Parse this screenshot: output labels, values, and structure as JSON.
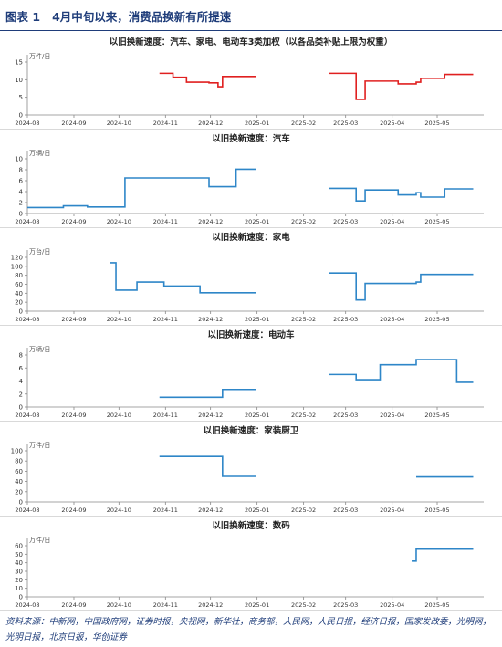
{
  "figure": {
    "title": "图表 1   4月中旬以来，消费品换新有所提速"
  },
  "source": "资料来源：中新网，中国政府网，证券时报，央视网，新华社，商务部，人民网，人民日报，经济日报，国家发改委，光明网，光明日报，北京日报，华创证券",
  "x_ticks": [
    "2024-08",
    "2024-09",
    "2024-10",
    "2024-11",
    "2024-12",
    "2025-01",
    "2025-02",
    "2025-03",
    "2025-04",
    "2025-05"
  ],
  "colors": {
    "red": "#e02020",
    "blue": "#2e86c8",
    "axis": "#888888",
    "title": "#1f3d7a"
  },
  "chart_data": [
    {
      "type": "line",
      "title": "以旧换新速度：汽车、家电、电动车3类加权（以各品类补贴上限为权重）",
      "unit": "万件/日",
      "ylim": [
        0,
        15
      ],
      "yticks": [
        0,
        5,
        10,
        15
      ],
      "color": "red",
      "segments": [
        [
          [
            "2024-10-28",
            11.8
          ],
          [
            "2024-11-06",
            11.8
          ],
          [
            "2024-11-06",
            10.7
          ],
          [
            "2024-11-15",
            10.7
          ],
          [
            "2024-11-15",
            9.3
          ],
          [
            "2024-11-30",
            9.3
          ],
          [
            "2024-11-30",
            9.1
          ],
          [
            "2024-12-06",
            9.1
          ],
          [
            "2024-12-06",
            8.0
          ],
          [
            "2024-12-09",
            8.0
          ],
          [
            "2024-12-09",
            10.9
          ],
          [
            "2024-12-31",
            10.9
          ]
        ],
        [
          [
            "2025-02-18",
            11.8
          ],
          [
            "2025-03-08",
            11.8
          ],
          [
            "2025-03-08",
            4.4
          ],
          [
            "2025-03-14",
            4.4
          ],
          [
            "2025-03-14",
            9.6
          ],
          [
            "2025-03-29",
            9.6
          ],
          [
            "2025-03-29",
            9.6
          ],
          [
            "2025-04-05",
            9.6
          ],
          [
            "2025-04-05",
            8.8
          ],
          [
            "2025-04-17",
            8.8
          ],
          [
            "2025-04-17",
            9.3
          ],
          [
            "2025-04-20",
            9.3
          ],
          [
            "2025-04-20",
            10.4
          ],
          [
            "2025-05-06",
            10.4
          ],
          [
            "2025-05-06",
            11.5
          ],
          [
            "2025-05-25",
            11.5
          ]
        ]
      ]
    },
    {
      "type": "line",
      "title": "以旧换新速度：汽车",
      "unit": "万辆/日",
      "ylim": [
        0,
        10
      ],
      "yticks": [
        0,
        2,
        4,
        6,
        8,
        10
      ],
      "color": "blue",
      "segments": [
        [
          [
            "2024-08-01",
            1.1
          ],
          [
            "2024-08-25",
            1.1
          ],
          [
            "2024-08-25",
            1.4
          ],
          [
            "2024-09-10",
            1.4
          ],
          [
            "2024-09-10",
            1.2
          ],
          [
            "2024-10-05",
            1.2
          ],
          [
            "2024-10-05",
            6.5
          ],
          [
            "2024-11-30",
            6.5
          ],
          [
            "2024-11-30",
            4.9
          ],
          [
            "2024-12-18",
            4.9
          ],
          [
            "2024-12-18",
            8.1
          ],
          [
            "2024-12-31",
            8.1
          ]
        ],
        [
          [
            "2025-02-18",
            4.6
          ],
          [
            "2025-03-08",
            4.6
          ],
          [
            "2025-03-08",
            2.3
          ],
          [
            "2025-03-14",
            2.3
          ],
          [
            "2025-03-14",
            4.3
          ],
          [
            "2025-03-29",
            4.3
          ],
          [
            "2025-03-29",
            4.3
          ],
          [
            "2025-04-05",
            4.3
          ],
          [
            "2025-04-05",
            3.4
          ],
          [
            "2025-04-17",
            3.4
          ],
          [
            "2025-04-17",
            3.8
          ],
          [
            "2025-04-20",
            3.8
          ],
          [
            "2025-04-20",
            3.0
          ],
          [
            "2025-05-06",
            3.0
          ],
          [
            "2025-05-06",
            4.5
          ],
          [
            "2025-05-25",
            4.5
          ]
        ]
      ]
    },
    {
      "type": "line",
      "title": "以旧换新速度：家电",
      "unit": "万台/日",
      "ylim": [
        0,
        120
      ],
      "yticks": [
        0,
        20,
        40,
        60,
        80,
        100,
        120
      ],
      "color": "blue",
      "segments": [
        [
          [
            "2024-09-25",
            108
          ],
          [
            "2024-09-29",
            108
          ],
          [
            "2024-09-29",
            47
          ],
          [
            "2024-10-13",
            47
          ],
          [
            "2024-10-13",
            65
          ],
          [
            "2024-10-31",
            65
          ],
          [
            "2024-10-31",
            56
          ],
          [
            "2024-11-24",
            56
          ],
          [
            "2024-11-24",
            41
          ],
          [
            "2024-12-31",
            41
          ]
        ],
        [
          [
            "2025-02-18",
            85
          ],
          [
            "2025-03-08",
            85
          ],
          [
            "2025-03-08",
            25
          ],
          [
            "2025-03-14",
            25
          ],
          [
            "2025-03-14",
            62
          ],
          [
            "2025-03-29",
            62
          ],
          [
            "2025-03-29",
            62
          ],
          [
            "2025-04-05",
            62
          ],
          [
            "2025-04-05",
            62
          ],
          [
            "2025-04-17",
            62
          ],
          [
            "2025-04-17",
            65
          ],
          [
            "2025-04-20",
            65
          ],
          [
            "2025-04-20",
            82
          ],
          [
            "2025-05-06",
            82
          ],
          [
            "2025-05-06",
            82
          ],
          [
            "2025-05-25",
            82
          ]
        ]
      ]
    },
    {
      "type": "line",
      "title": "以旧换新速度：电动车",
      "unit": "万辆/日",
      "ylim": [
        0,
        8
      ],
      "yticks": [
        0,
        2,
        4,
        6,
        8
      ],
      "color": "blue",
      "segments": [
        [
          [
            "2024-10-28",
            1.5
          ],
          [
            "2024-12-09",
            1.5
          ],
          [
            "2024-12-09",
            2.7
          ],
          [
            "2024-12-31",
            2.7
          ]
        ],
        [
          [
            "2025-02-18",
            5.0
          ],
          [
            "2025-03-08",
            5.0
          ],
          [
            "2025-03-08",
            4.2
          ],
          [
            "2025-03-24",
            4.2
          ],
          [
            "2025-03-24",
            6.5
          ],
          [
            "2025-04-17",
            6.5
          ],
          [
            "2025-04-17",
            7.3
          ],
          [
            "2025-05-14",
            7.3
          ],
          [
            "2025-05-14",
            3.8
          ],
          [
            "2025-05-25",
            3.8
          ]
        ]
      ]
    },
    {
      "type": "line",
      "title": "以旧换新速度：家装厨卫",
      "unit": "万件/日",
      "ylim": [
        0,
        100
      ],
      "yticks": [
        0,
        20,
        40,
        60,
        80,
        100
      ],
      "color": "blue",
      "segments": [
        [
          [
            "2024-10-28",
            89
          ],
          [
            "2024-12-09",
            89
          ],
          [
            "2024-12-09",
            50
          ],
          [
            "2024-12-31",
            50
          ]
        ],
        [
          [
            "2025-04-17",
            49
          ],
          [
            "2025-05-25",
            49
          ]
        ]
      ]
    },
    {
      "type": "line",
      "title": "以旧换新速度：数码",
      "unit": "万件/日",
      "ylim": [
        0,
        60
      ],
      "yticks": [
        0,
        10,
        20,
        30,
        40,
        50,
        60
      ],
      "color": "blue",
      "segments": [
        [
          [
            "2025-04-14",
            42
          ],
          [
            "2025-04-17",
            42
          ],
          [
            "2025-04-17",
            56
          ],
          [
            "2025-05-25",
            56
          ]
        ]
      ]
    }
  ]
}
